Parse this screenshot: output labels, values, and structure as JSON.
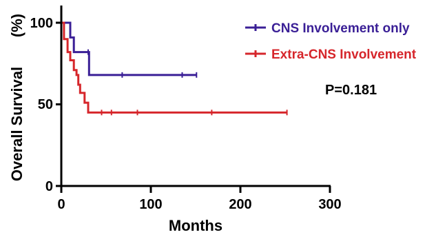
{
  "chart_data": {
    "type": "line",
    "title": "",
    "xlabel": "Months",
    "ylabel": "Overall Survival",
    "ylabel_unit": "(%)",
    "xlim": [
      0,
      300
    ],
    "ylim": [
      0,
      100
    ],
    "x_ticks": [
      "0",
      "100",
      "200",
      "300"
    ],
    "y_ticks": [
      "0",
      "50",
      "100"
    ],
    "grid": false,
    "legend_position": "top-right",
    "annotation": "P=0.181",
    "series": [
      {
        "name": "CNS Involvement only",
        "color": "#3a1f96",
        "steps": [
          [
            0,
            100
          ],
          [
            10,
            91
          ],
          [
            14,
            82
          ],
          [
            31,
            68
          ],
          [
            151,
            68
          ]
        ],
        "censored": [
          [
            30,
            82
          ],
          [
            68,
            68
          ],
          [
            135,
            68
          ],
          [
            151,
            68
          ]
        ]
      },
      {
        "name": "Extra-CNS Involvement",
        "color": "#d6262b",
        "steps": [
          [
            0,
            100
          ],
          [
            3,
            90
          ],
          [
            7,
            82
          ],
          [
            10,
            77
          ],
          [
            14,
            71
          ],
          [
            17,
            68
          ],
          [
            19,
            62
          ],
          [
            21,
            57
          ],
          [
            26,
            51
          ],
          [
            30,
            45
          ],
          [
            252,
            45
          ]
        ],
        "censored": [
          [
            45,
            45
          ],
          [
            56,
            45
          ],
          [
            85,
            45
          ],
          [
            168,
            45
          ],
          [
            252,
            45
          ]
        ]
      }
    ]
  }
}
